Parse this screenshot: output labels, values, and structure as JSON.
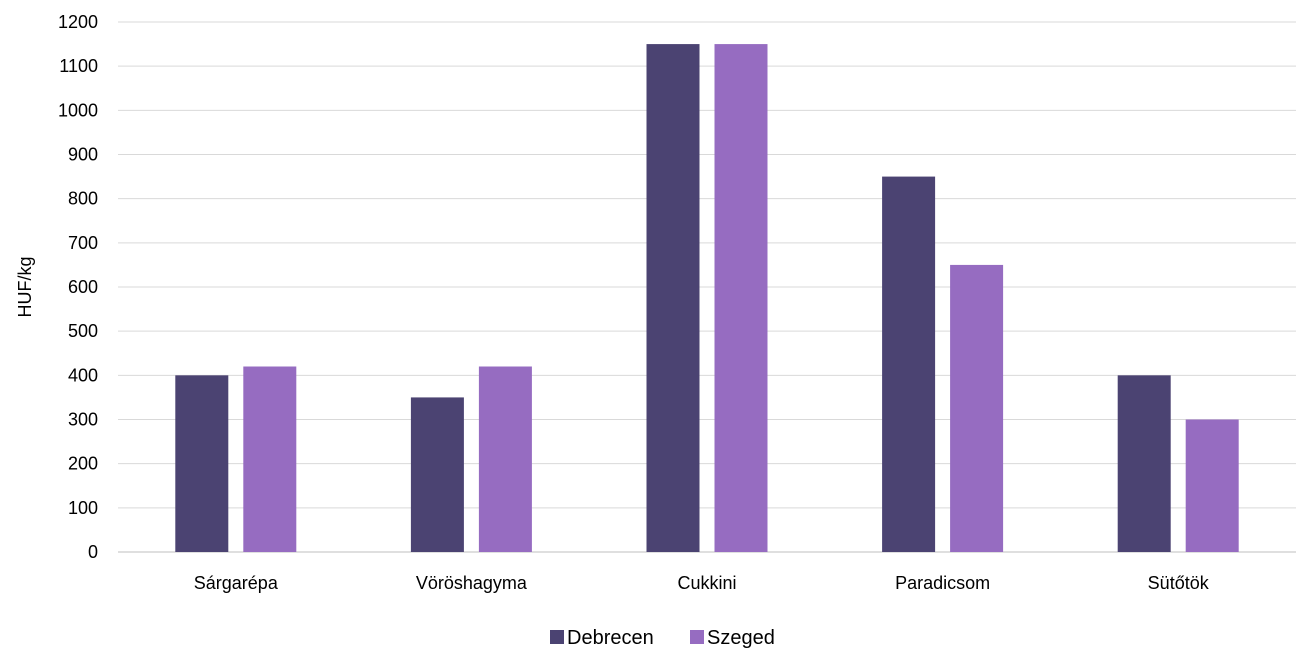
{
  "chart_data": {
    "type": "bar",
    "ylabel": "HUF/kg",
    "xlabel": "",
    "ylim": [
      0,
      1200
    ],
    "ytick_step": 100,
    "grid": true,
    "legend_position": "bottom",
    "categories": [
      "Sárgarépa",
      "Vöröshagyma",
      "Cukkini",
      "Paradicsom",
      "Sütőtök"
    ],
    "series": [
      {
        "name": "Debrecen",
        "color": "#4b4372",
        "values": [
          400,
          350,
          1150,
          850,
          400
        ]
      },
      {
        "name": "Szeged",
        "color": "#966cc1",
        "values": [
          420,
          420,
          1150,
          650,
          300
        ]
      }
    ]
  }
}
